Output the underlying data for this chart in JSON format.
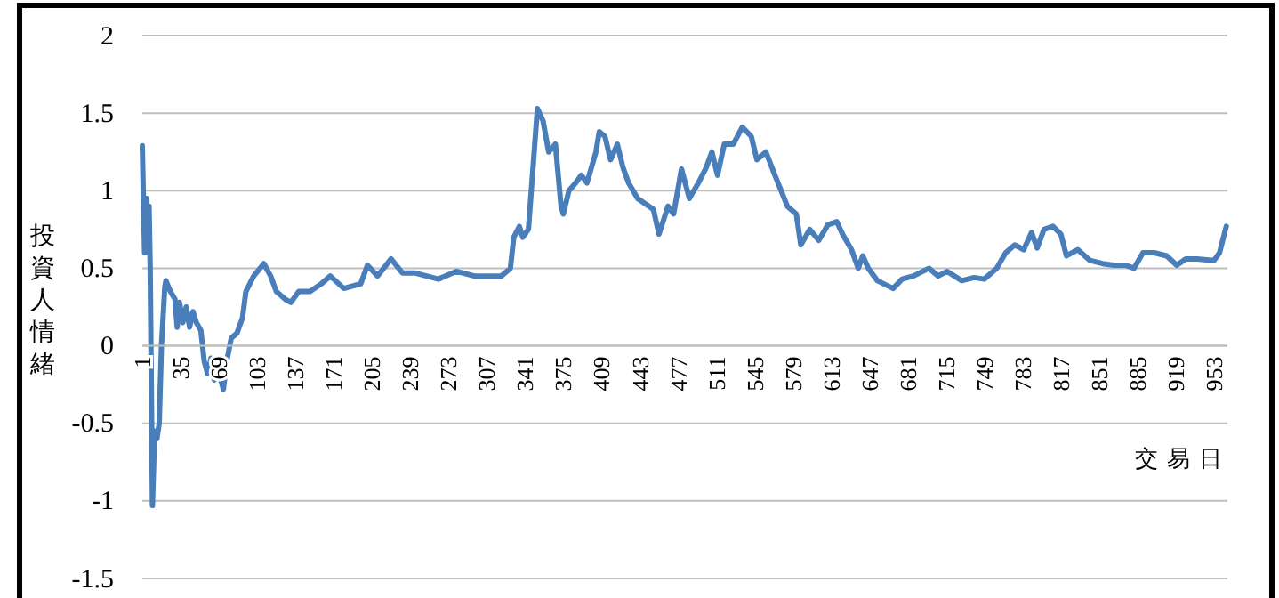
{
  "chart_data": {
    "type": "line",
    "xlabel": "交易日",
    "ylabel": "投資人情緒",
    "xlim": [
      1,
      965
    ],
    "ylim": [
      -1.5,
      2
    ],
    "xticks": [
      1,
      35,
      69,
      103,
      137,
      171,
      205,
      239,
      273,
      307,
      341,
      375,
      409,
      443,
      477,
      511,
      545,
      579,
      613,
      647,
      681,
      715,
      749,
      783,
      817,
      851,
      885,
      919,
      953
    ],
    "yticks": [
      -1.5,
      -0.5,
      -1,
      0,
      0.5,
      1,
      1.5,
      2
    ],
    "grid": "y",
    "marker": "none",
    "line_style": "solid",
    "series": [
      {
        "color": "#4a7ebb",
        "x": [
          1,
          3,
          5,
          6,
          7,
          8,
          10,
          12,
          14,
          16,
          18,
          21,
          22,
          26,
          30,
          32,
          34,
          37,
          40,
          43,
          46,
          49,
          53,
          56,
          59,
          62,
          65,
          68,
          73,
          76,
          80,
          85,
          90,
          93,
          100,
          109,
          115,
          120,
          128,
          133,
          140,
          150,
          160,
          168,
          180,
          195,
          201,
          210,
          222,
          232,
          243,
          264,
          280,
          296,
          320,
          328,
          331,
          336,
          339,
          344,
          352,
          357,
          362,
          368,
          373,
          375,
          380,
          386,
          391,
          396,
          404,
          407,
          412,
          417,
          423,
          428,
          433,
          441,
          455,
          460,
          468,
          473,
          480,
          487,
          495,
          502,
          507,
          512,
          518,
          526,
          534,
          542,
          547,
          555,
          563,
          574,
          582,
          586,
          594,
          602,
          610,
          618,
          623,
          631,
          637,
          641,
          646,
          654,
          668,
          676,
          686,
          700,
          708,
          716,
          729,
          740,
          749,
          760,
          768,
          776,
          784,
          791,
          796,
          802,
          810,
          817,
          822,
          832,
          843,
          854,
          864,
          874,
          882,
          890,
          900,
          911,
          920,
          928,
          938,
          953,
          958,
          964
        ],
        "values": [
          1.29,
          0.6,
          0.95,
          0.6,
          0.9,
          0.5,
          -1.03,
          -0.55,
          -0.6,
          -0.5,
          0.0,
          0.38,
          0.42,
          0.35,
          0.3,
          0.12,
          0.28,
          0.15,
          0.25,
          0.12,
          0.22,
          0.15,
          0.1,
          -0.1,
          -0.18,
          -0.08,
          -0.22,
          -0.15,
          -0.28,
          -0.1,
          0.05,
          0.08,
          0.18,
          0.35,
          0.45,
          0.53,
          0.45,
          0.35,
          0.3,
          0.28,
          0.35,
          0.35,
          0.4,
          0.45,
          0.37,
          0.4,
          0.52,
          0.45,
          0.56,
          0.47,
          0.47,
          0.43,
          0.48,
          0.45,
          0.45,
          0.5,
          0.7,
          0.77,
          0.7,
          0.75,
          1.53,
          1.45,
          1.25,
          1.3,
          0.9,
          0.85,
          1.0,
          1.05,
          1.1,
          1.05,
          1.25,
          1.38,
          1.35,
          1.2,
          1.3,
          1.15,
          1.05,
          0.95,
          0.88,
          0.72,
          0.9,
          0.85,
          1.14,
          0.95,
          1.05,
          1.15,
          1.25,
          1.1,
          1.3,
          1.3,
          1.41,
          1.35,
          1.2,
          1.25,
          1.1,
          0.9,
          0.85,
          0.65,
          0.75,
          0.68,
          0.78,
          0.8,
          0.72,
          0.62,
          0.5,
          0.58,
          0.5,
          0.42,
          0.37,
          0.43,
          0.45,
          0.5,
          0.45,
          0.48,
          0.42,
          0.44,
          0.43,
          0.5,
          0.6,
          0.65,
          0.62,
          0.73,
          0.63,
          0.75,
          0.77,
          0.72,
          0.58,
          0.62,
          0.55,
          0.53,
          0.52,
          0.52,
          0.5,
          0.6,
          0.6,
          0.58,
          0.52,
          0.56,
          0.56,
          0.55,
          0.6,
          0.77
        ]
      }
    ]
  }
}
